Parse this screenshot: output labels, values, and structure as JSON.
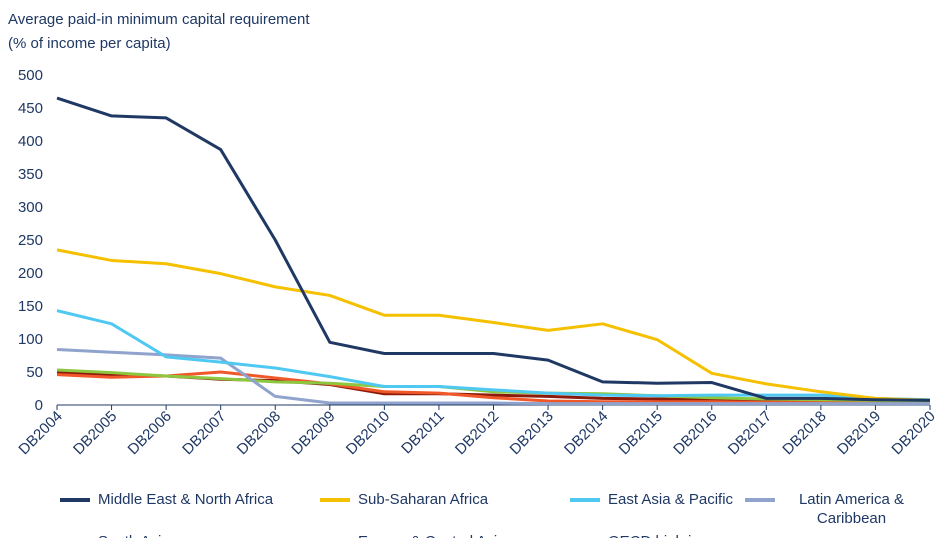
{
  "chart_data": {
    "type": "line",
    "title": "Average paid-in minimum capital requirement",
    "subtitle": "(% of income per capita)",
    "categories": [
      "DB2004",
      "DB2005",
      "DB2006",
      "DB2007",
      "DB2008",
      "DB2009",
      "DB2010",
      "DB2011",
      "DB2012",
      "DB2013",
      "DB2014",
      "DB2015",
      "DB2016",
      "DB2017",
      "DB2018",
      "DB2019",
      "DB2020"
    ],
    "series": [
      {
        "name": "Middle East & North Africa",
        "color": "#1f3864",
        "values": [
          465,
          438,
          435,
          387,
          250,
          95,
          78,
          78,
          78,
          68,
          35,
          33,
          34,
          10,
          10,
          8,
          7
        ]
      },
      {
        "name": "Sub-Saharan Africa",
        "color": "#f5c000",
        "values": [
          235,
          219,
          214,
          199,
          179,
          166,
          136,
          136,
          125,
          113,
          123,
          99,
          48,
          32,
          20,
          10,
          7
        ]
      },
      {
        "name": "East Asia & Pacific",
        "color": "#4fc8f2",
        "values": [
          143,
          123,
          73,
          65,
          56,
          43,
          28,
          28,
          23,
          18,
          15,
          14,
          15,
          15,
          15,
          10,
          8
        ]
      },
      {
        "name": "Latin America & Caribbean",
        "color": "#8fa3cc",
        "values": [
          84,
          80,
          76,
          71,
          13,
          3,
          3,
          3,
          3,
          2,
          2,
          2,
          2,
          2,
          2,
          2,
          2
        ]
      },
      {
        "name": "South Asia",
        "color": "#8dc63f",
        "values": [
          53,
          49,
          44,
          40,
          35,
          33,
          28,
          28,
          20,
          18,
          17,
          14,
          11,
          9,
          8,
          7,
          6
        ]
      },
      {
        "name": "Europe & Central Asia",
        "color": "#f0582a",
        "values": [
          46,
          42,
          44,
          50,
          41,
          32,
          20,
          18,
          11,
          6,
          5,
          5,
          5,
          4,
          4,
          4,
          4
        ]
      },
      {
        "name": "OECD high income",
        "color": "#8b1a0a",
        "values": [
          50,
          46,
          44,
          39,
          37,
          31,
          17,
          17,
          15,
          13,
          10,
          9,
          8,
          8,
          7,
          7,
          7
        ]
      }
    ],
    "ylim": [
      0,
      500
    ],
    "yticks": [
      0,
      50,
      100,
      150,
      200,
      250,
      300,
      350,
      400,
      450,
      500
    ],
    "grid": false
  }
}
